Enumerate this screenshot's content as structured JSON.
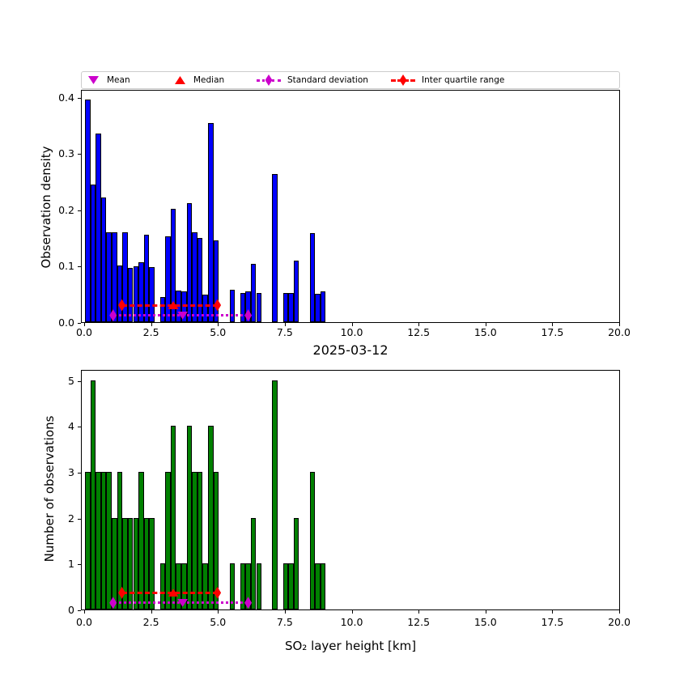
{
  "figure": {
    "background": "#FFFFFF"
  },
  "colors": {
    "density_bar": "#0000FF",
    "count_bar": "#008000",
    "bar_edge": "#000000",
    "red": "#FF0000",
    "magenta": "#CC00CC",
    "legend_border": "#CCCCCC"
  },
  "legend": {
    "items": [
      {
        "label": "Mean",
        "marker": "triangle-down-icon",
        "color": "#CC00CC",
        "line": "none"
      },
      {
        "label": "Median",
        "marker": "triangle-up-icon",
        "color": "#FF0000",
        "line": "none"
      },
      {
        "label": "Standard deviation",
        "marker": "diamond-icon",
        "color": "#CC00CC",
        "line": "dotted"
      },
      {
        "label": "Inter quartile range",
        "marker": "diamond-icon",
        "color": "#FF0000",
        "line": "dashed"
      }
    ]
  },
  "chart_data": [
    {
      "type": "bar",
      "name": "observation-density-histogram",
      "xlabel": "2025-03-12",
      "ylabel": "Observation density",
      "bar_color": "#0000FF",
      "bin_width": 0.2,
      "xlim": [
        0,
        20
      ],
      "ylim": [
        0,
        0.414
      ],
      "grid": false,
      "xticks": [
        0,
        2.5,
        5,
        7.5,
        10,
        12.5,
        15,
        17.5,
        20
      ],
      "xtick_labels": [
        "0.0",
        "2.5",
        "5.0",
        "7.5",
        "10.0",
        "12.5",
        "15.0",
        "17.5",
        "20.0"
      ],
      "yticks": [
        0,
        0.1,
        0.2,
        0.3,
        0.4
      ],
      "ytick_labels": [
        "0.0",
        "0.1",
        "0.2",
        "0.3",
        "0.4"
      ],
      "bin_start": [
        0.0,
        0.2,
        0.4,
        0.6,
        0.8,
        1.0,
        1.2,
        1.4,
        1.6,
        1.8,
        2.0,
        2.2,
        2.4,
        2.6,
        2.8,
        3.0,
        3.2,
        3.4,
        3.6,
        3.8,
        4.0,
        4.2,
        4.4,
        4.6,
        4.8,
        5.0,
        5.2,
        5.4,
        5.6,
        5.8,
        6.0,
        6.2,
        6.4,
        6.6,
        6.8,
        7.0,
        7.2,
        7.4,
        7.6,
        7.8,
        8.0,
        8.2,
        8.4,
        8.6,
        8.8
      ],
      "values": [
        0.395,
        0.245,
        0.335,
        0.222,
        0.16,
        0.16,
        0.101,
        0.16,
        0.097,
        0.099,
        0.107,
        0.156,
        0.098,
        0,
        0.045,
        0.153,
        0.202,
        0.056,
        0.054,
        0.212,
        0.159,
        0.15,
        0.049,
        0.353,
        0.145,
        0,
        0,
        0.057,
        0,
        0.052,
        0.055,
        0.103,
        0.052,
        0,
        0,
        0.263,
        0,
        0.052,
        0.052,
        0.109,
        0,
        0,
        0.158,
        0.05,
        0.054
      ],
      "markers": {
        "mean": {
          "x": 3.65,
          "y": 0.015
        },
        "median": {
          "x": 3.3,
          "y": 0.033
        },
        "std": {
          "x1": 1.05,
          "x2": 6.1,
          "y": 0.015
        },
        "iqr": {
          "x1": 1.38,
          "x2": 4.95,
          "y": 0.033
        }
      }
    },
    {
      "type": "bar",
      "name": "observation-count-histogram",
      "xlabel": "SO₂ layer height [km]",
      "ylabel": "Number of observations",
      "bar_color": "#008000",
      "bin_width": 0.2,
      "xlim": [
        0,
        20
      ],
      "ylim": [
        0,
        5.24
      ],
      "grid": false,
      "xticks": [
        0,
        2.5,
        5,
        7.5,
        10,
        12.5,
        15,
        17.5,
        20
      ],
      "xtick_labels": [
        "0.0",
        "2.5",
        "5.0",
        "7.5",
        "10.0",
        "12.5",
        "15.0",
        "17.5",
        "20.0"
      ],
      "yticks": [
        0,
        1,
        2,
        3,
        4,
        5
      ],
      "ytick_labels": [
        "0",
        "1",
        "2",
        "3",
        "4",
        "5"
      ],
      "bin_start": [
        0.0,
        0.2,
        0.4,
        0.6,
        0.8,
        1.0,
        1.2,
        1.4,
        1.6,
        1.8,
        2.0,
        2.2,
        2.4,
        2.6,
        2.8,
        3.0,
        3.2,
        3.4,
        3.6,
        3.8,
        4.0,
        4.2,
        4.4,
        4.6,
        4.8,
        5.0,
        5.2,
        5.4,
        5.6,
        5.8,
        6.0,
        6.2,
        6.4,
        6.6,
        6.8,
        7.0,
        7.2,
        7.4,
        7.6,
        7.8,
        8.0,
        8.2,
        8.4,
        8.6,
        8.8
      ],
      "values": [
        3,
        5,
        3,
        3,
        3,
        2,
        3,
        2,
        2,
        2,
        3,
        2,
        2,
        0,
        1,
        3,
        4,
        1,
        1,
        4,
        3,
        3,
        1,
        4,
        3,
        0,
        0,
        1,
        0,
        1,
        1,
        2,
        1,
        0,
        0,
        5,
        0,
        1,
        1,
        2,
        0,
        0,
        3,
        1,
        1
      ],
      "markers": {
        "mean": {
          "x": 3.65,
          "y": 0.18
        },
        "median": {
          "x": 3.3,
          "y": 0.4
        },
        "std": {
          "x1": 1.05,
          "x2": 6.1,
          "y": 0.18
        },
        "iqr": {
          "x1": 1.38,
          "x2": 4.95,
          "y": 0.4
        }
      }
    }
  ]
}
